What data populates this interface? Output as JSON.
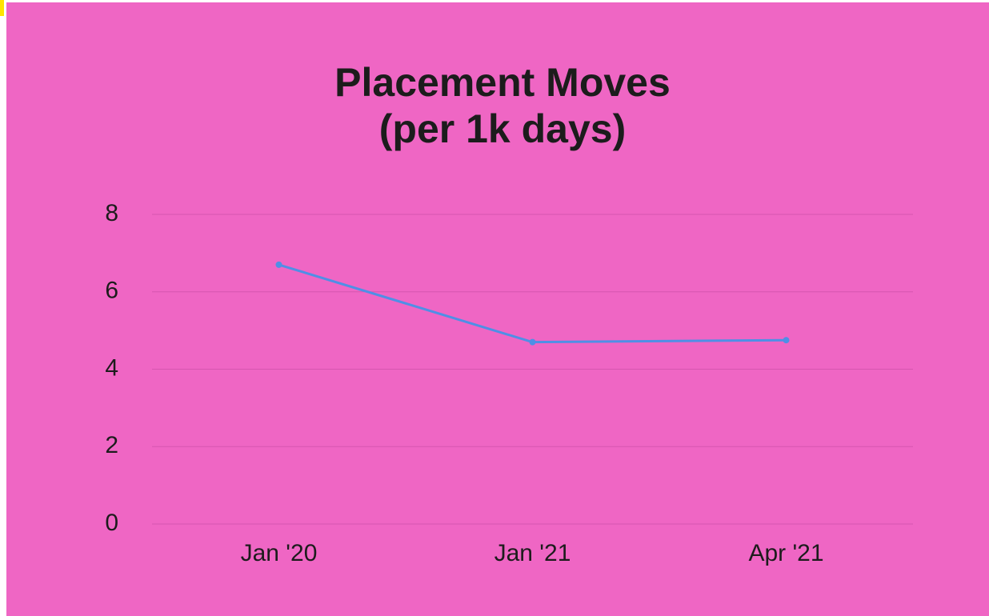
{
  "chart_data": {
    "type": "line",
    "title": "Placement Moves (per 1k days)",
    "categories": [
      "Jan '20",
      "Jan '21",
      "Apr '21"
    ],
    "series": [
      {
        "name": "Placement Moves",
        "color": "#4f8fe6",
        "values": [
          6.7,
          4.7,
          4.75
        ]
      }
    ],
    "ylim": [
      0,
      8
    ],
    "yticks": [
      0,
      2,
      4,
      6,
      8
    ],
    "grid": true
  }
}
